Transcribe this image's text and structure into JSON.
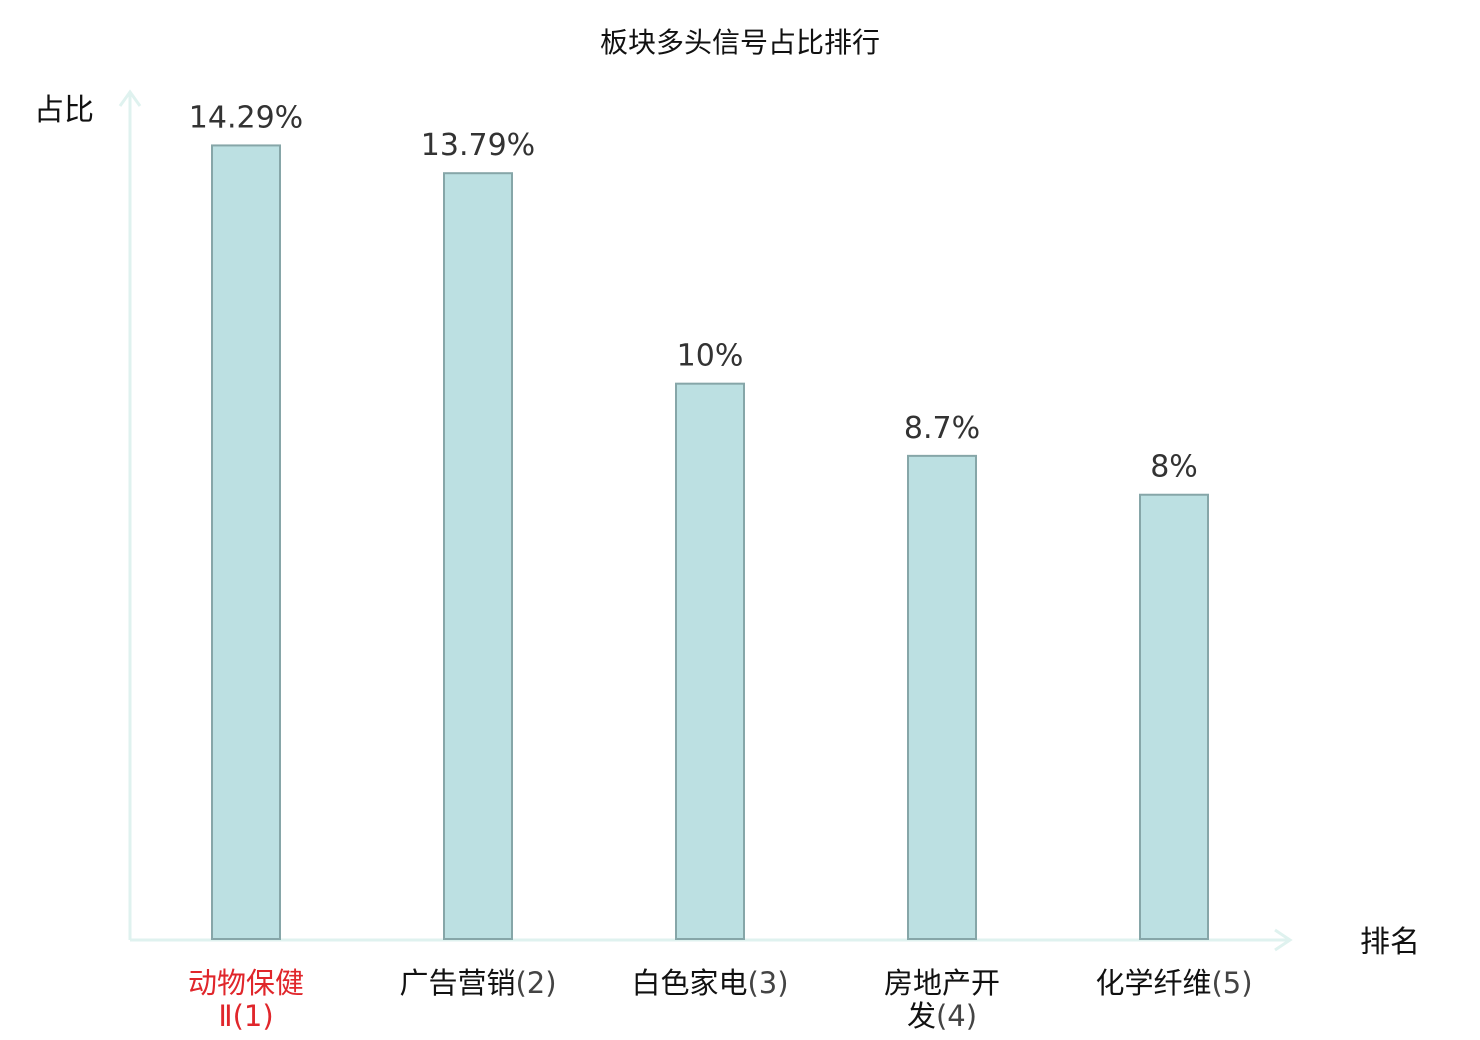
{
  "chart_data": {
    "type": "bar",
    "title": "板块多头信号占比排行",
    "xlabel": "排名",
    "ylabel": "占比",
    "categories": [
      {
        "lines": [
          {
            "name": "动物保健",
            "rank": ""
          },
          {
            "name": "",
            "rank": "Ⅱ(1)"
          }
        ],
        "highlight": true
      },
      {
        "lines": [
          {
            "name": "广告营销",
            "rank": "(2)"
          }
        ],
        "highlight": false
      },
      {
        "lines": [
          {
            "name": "白色家电",
            "rank": "(3)"
          }
        ],
        "highlight": false
      },
      {
        "lines": [
          {
            "name": "房地产开",
            "rank": ""
          },
          {
            "name": "发",
            "rank": "(4)"
          }
        ],
        "highlight": false
      },
      {
        "lines": [
          {
            "name": "化学纤维",
            "rank": "(5)"
          }
        ],
        "highlight": false
      }
    ],
    "values": [
      14.29,
      13.79,
      10,
      8.7,
      8
    ],
    "value_labels": [
      "14.29%",
      "13.79%",
      "10%",
      "8.7%",
      "8%"
    ],
    "ylim": [
      0,
      15
    ],
    "grid": false,
    "legend": "none",
    "colors": {
      "bar_fill": "#bce0e2",
      "bar_stroke": "#86a6a8",
      "axis": "#dff2ef",
      "highlight_label": "#e0262b",
      "value_label": "#333333",
      "text": "#111111"
    }
  }
}
